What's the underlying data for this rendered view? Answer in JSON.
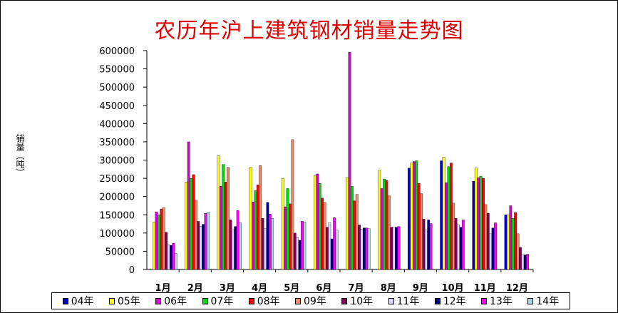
{
  "chart_data": {
    "type": "bar",
    "title": "农历年沪上建筑钢材销量走势图",
    "ylabel": "销量（吨）",
    "xlabel": "",
    "ylim": [
      0,
      600000
    ],
    "yticks": [
      0,
      50000,
      100000,
      150000,
      200000,
      250000,
      300000,
      350000,
      400000,
      450000,
      500000,
      550000,
      600000
    ],
    "grid": false,
    "legend": "bottom",
    "categories": [
      "1月",
      "2月",
      "3月",
      "4月",
      "5月",
      "6月",
      "7月",
      "8月",
      "9月",
      "10月",
      "11月",
      "12月"
    ],
    "series": [
      {
        "name": "04年",
        "color": "#0000cc",
        "values": [
          null,
          null,
          null,
          null,
          null,
          null,
          null,
          null,
          278000,
          298000,
          242000,
          150000
        ]
      },
      {
        "name": "05年",
        "color": "#ffff00",
        "values": [
          130000,
          240000,
          312000,
          280000,
          250000,
          258000,
          252000,
          272000,
          292000,
          308000,
          278000,
          150000
        ]
      },
      {
        "name": "06年",
        "color": "#dd00dd",
        "values": [
          158000,
          350000,
          228000,
          185000,
          172000,
          262000,
          596000,
          222000,
          296000,
          238000,
          252000,
          175000
        ]
      },
      {
        "name": "07年",
        "color": "#00dd00",
        "values": [
          150000,
          250000,
          288000,
          216000,
          222000,
          236000,
          228000,
          248000,
          298000,
          282000,
          256000,
          140000
        ]
      },
      {
        "name": "08年",
        "color": "#ff0000",
        "values": [
          166000,
          260000,
          240000,
          232000,
          180000,
          196000,
          188000,
          244000,
          236000,
          292000,
          250000,
          156000
        ]
      },
      {
        "name": "09年",
        "color": "#f08868",
        "values": [
          170000,
          190000,
          280000,
          285000,
          356000,
          184000,
          206000,
          202000,
          208000,
          182000,
          178000,
          98000
        ]
      },
      {
        "name": "10年",
        "color": "#800060",
        "values": [
          102000,
          132000,
          136000,
          140000,
          100000,
          116000,
          122000,
          116000,
          138000,
          140000,
          154000,
          60000
        ]
      },
      {
        "name": "11年",
        "color": "#d8d8ff",
        "values": [
          68000,
          118000,
          108000,
          112000,
          88000,
          128000,
          110000,
          116000,
          108000,
          122000,
          98000,
          40000
        ]
      },
      {
        "name": "12年",
        "color": "#000080",
        "values": [
          66000,
          124000,
          118000,
          184000,
          80000,
          84000,
          114000,
          116000,
          136000,
          116000,
          114000,
          40000
        ]
      },
      {
        "name": "13年",
        "color": "#ff00ff",
        "values": [
          72000,
          154000,
          162000,
          152000,
          132000,
          142000,
          114000,
          118000,
          126000,
          136000,
          128000,
          42000
        ]
      },
      {
        "name": "14年",
        "color": "#a8d8e8",
        "values": [
          44000,
          156000,
          128000,
          140000,
          130000,
          108000,
          112000,
          null,
          null,
          null,
          null,
          null
        ]
      }
    ]
  }
}
